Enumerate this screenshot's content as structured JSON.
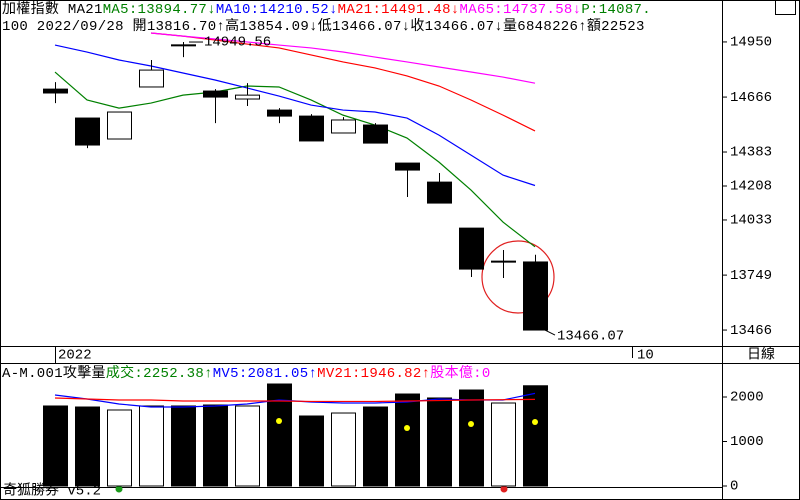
{
  "chart_data": [
    {
      "type": "candlestick",
      "header": [
        [
          {
            "text": "加權指數 MA21",
            "color": "#000000"
          },
          {
            "text": "MA5:13894.77↓",
            "color": "#008000"
          },
          {
            "text": "MA10:14210.52↓",
            "color": "#0000ff"
          },
          {
            "text": "MA21:14491.48↓",
            "color": "#ff0000"
          },
          {
            "text": "MA65:14737.58↓",
            "color": "#ff00ff"
          },
          {
            "text": "P:14087.",
            "color": "#008000"
          }
        ],
        [
          {
            "text": "100 2022/09/28 開13816.70↑高13854.09↓低13466.07↓收13466.07↓量6848226↑額22523",
            "color": "#000000"
          }
        ]
      ],
      "categories": [
        null,
        null,
        null,
        null,
        null,
        null,
        null,
        null,
        null,
        null,
        null,
        null,
        null,
        null,
        null,
        null
      ],
      "open": [
        14707,
        14558,
        14450,
        14718,
        14930,
        14697,
        14656,
        14599,
        14568,
        14481,
        14522,
        14326,
        14228,
        13991,
        13821,
        13816.7
      ],
      "high": [
        14743,
        14558,
        14589,
        14857,
        14949.56,
        14707,
        14738,
        14609,
        14578,
        14563,
        14532,
        14326,
        14275,
        13991,
        13878,
        13854.09
      ],
      "low": [
        14635,
        14403,
        14450,
        14718,
        14872,
        14532,
        14620,
        14532,
        14440,
        14481,
        14429,
        14151,
        14120,
        13739,
        13734,
        13466.07
      ],
      "close": [
        14687,
        14419,
        14589,
        14805,
        14935,
        14666,
        14676,
        14568,
        14440,
        14548,
        14429,
        14290,
        14120,
        13780,
        13816,
        13466.07
      ],
      "up_color": "#ffffff",
      "down_color": "#000000",
      "series": [
        {
          "name": "MA5",
          "color": "#008000",
          "values": [
            14795,
            14651,
            14609,
            14635,
            14676,
            14692,
            14723,
            14718,
            14651,
            14573,
            14522,
            14455,
            14331,
            14187,
            14022,
            13894.77
          ]
        },
        {
          "name": "MA10",
          "color": "#0000ff",
          "values": [
            14934,
            14898,
            14857,
            14826,
            14790,
            14754,
            14713,
            14671,
            14625,
            14599,
            14589,
            14558,
            14470,
            14367,
            14264,
            14210.52
          ]
        },
        {
          "name": "MA21",
          "color": "#ff0000",
          "values": [
            null,
            null,
            null,
            14996,
            14980,
            14960,
            14939,
            14919,
            14883,
            14847,
            14816,
            14775,
            14723,
            14651,
            14573,
            14491.48
          ]
        },
        {
          "name": "MA65",
          "color": "#ff00ff",
          "values": [
            null,
            null,
            null,
            14996,
            14980,
            14965,
            14950,
            14934,
            14919,
            14898,
            14872,
            14847,
            14821,
            14795,
            14769,
            14737.58
          ]
        }
      ],
      "annotations": [
        {
          "text": "14949.56"
        },
        {
          "text": "13466.07"
        }
      ],
      "ylim": [
        13389,
        15166
      ],
      "yticks": [
        14950,
        14666,
        14383,
        14208,
        14033,
        13749,
        13466
      ],
      "date_labels": [
        "2022",
        "10"
      ],
      "period": "日線"
    },
    {
      "type": "bar",
      "header": [
        {
          "text": "A-M.001攻擊量",
          "color": "#000000"
        },
        {
          "text": "成交:2252.38↑",
          "color": "#008000"
        },
        {
          "text": "MV5:2081.05↑",
          "color": "#0000ff"
        },
        {
          "text": "MV21:1946.82↑",
          "color": "#ff0000"
        },
        {
          "text": "股本億:0",
          "color": "#ff00ff"
        }
      ],
      "values": [
        1798,
        1775,
        1708,
        1798,
        1798,
        1820,
        1798,
        2292,
        1573,
        1640,
        1775,
        2067,
        1978,
        2157,
        1865,
        2252.38
      ],
      "colors": [
        "#000000",
        "#000000",
        "#ffffff",
        "#ffffff",
        "#000000",
        "#000000",
        "#ffffff",
        "#000000",
        "#000000",
        "#ffffff",
        "#000000",
        "#000000",
        "#000000",
        "#000000",
        "#ffffff",
        "#000000"
      ],
      "series": [
        {
          "name": "MV5",
          "color": "#0000ff",
          "values": [
            2045,
            1955,
            1843,
            1775,
            1775,
            1798,
            1843,
            1933,
            1888,
            1865,
            1865,
            1888,
            1955,
            1933,
            1933,
            2081.05
          ]
        },
        {
          "name": "MV21",
          "color": "#ff0000",
          "values": [
            1978,
            1955,
            1933,
            1933,
            1910,
            1910,
            1910,
            1910,
            1900,
            1900,
            1900,
            1910,
            1920,
            1933,
            1940,
            1946.82
          ]
        }
      ],
      "markers": {
        "color": "#ffff00",
        "values": [
          null,
          null,
          null,
          null,
          null,
          null,
          null,
          1461,
          null,
          null,
          null,
          1303,
          null,
          1393,
          null,
          1438
        ]
      },
      "ylim": [
        0,
        2719
      ],
      "yticks": [
        2000,
        1000,
        0
      ],
      "footer": "奇狐勝券 v5.2"
    }
  ]
}
